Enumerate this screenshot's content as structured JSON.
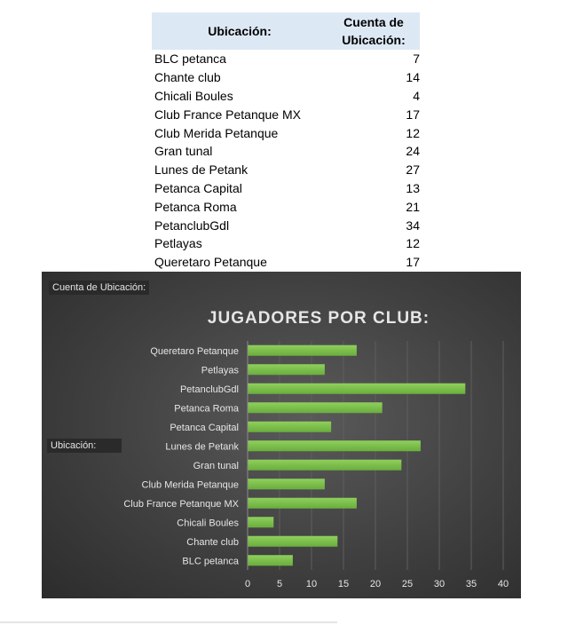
{
  "table": {
    "header_location": "Ubicación:",
    "header_count": "Cuenta de Ubicación:",
    "rows": [
      {
        "name": "BLC petanca",
        "count": "7"
      },
      {
        "name": "Chante club",
        "count": "14"
      },
      {
        "name": "Chicali Boules",
        "count": "4"
      },
      {
        "name": "Club France Petanque MX",
        "count": "17"
      },
      {
        "name": "Club Merida Petanque",
        "count": "12"
      },
      {
        "name": "Gran tunal",
        "count": "24"
      },
      {
        "name": "Lunes de Petank",
        "count": "27"
      },
      {
        "name": "Petanca Capital",
        "count": "13"
      },
      {
        "name": "Petanca Roma",
        "count": "21"
      },
      {
        "name": "PetanclubGdl",
        "count": "34"
      },
      {
        "name": "Petlayas",
        "count": "12"
      },
      {
        "name": "Queretaro Petanque",
        "count": "17"
      }
    ]
  },
  "pivot_tags": {
    "values_field": "Cuenta de Ubicación:",
    "axis_field": "Ubicación:"
  },
  "chart_data": {
    "type": "bar",
    "orientation": "horizontal",
    "title": "JUGADORES POR CLUB:",
    "categories": [
      "BLC petanca",
      "Chante club",
      "Chicali Boules",
      "Club France Petanque MX",
      "Club Merida Petanque",
      "Gran tunal",
      "Lunes de Petank",
      "Petanca Capital",
      "Petanca Roma",
      "PetanclubGdl",
      "Petlayas",
      "Queretaro Petanque"
    ],
    "values": [
      7,
      14,
      4,
      17,
      12,
      24,
      27,
      13,
      21,
      34,
      12,
      17
    ],
    "xlim": [
      0,
      40
    ],
    "xticks": [
      "0",
      "5",
      "10",
      "15",
      "20",
      "25",
      "30",
      "35",
      "40"
    ],
    "grid": true,
    "legend": "none",
    "colors": {
      "bar": "#6aad3d",
      "bar_light": "#8fd05c",
      "background": "#404040",
      "text": "#e6e6e6",
      "grid": "#5e5e5e"
    }
  }
}
